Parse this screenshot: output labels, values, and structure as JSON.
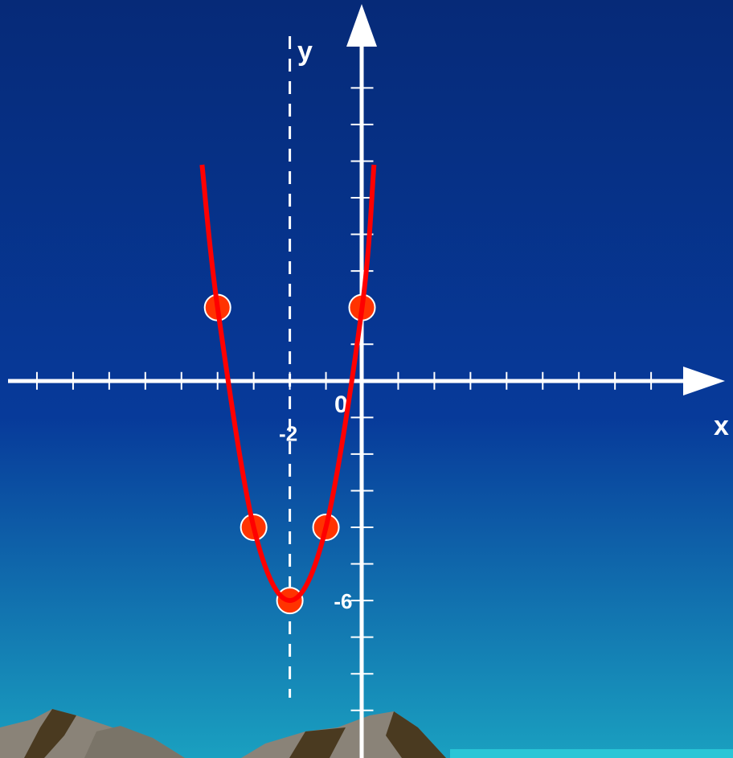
{
  "chart_data": {
    "type": "parabola",
    "x_axis_label": "x",
    "y_axis_label": "y",
    "origin_label": "0",
    "xlim": [
      -9.8,
      10
    ],
    "ylim": [
      -10.3,
      10.4
    ],
    "xticks": [
      -9,
      -8,
      -7,
      -6,
      -5,
      -4,
      -3,
      -2,
      -1,
      1,
      2,
      3,
      4,
      5,
      6,
      7,
      8
    ],
    "yticks": [
      -9,
      -8,
      -7,
      -6,
      -5,
      -4,
      -3,
      -2,
      -1,
      1,
      2,
      3,
      4,
      5,
      6,
      7,
      8
    ],
    "labeled_xticks": [
      -2
    ],
    "labeled_yticks": [
      -6
    ],
    "symmetry_x": -2,
    "points": {
      "color": "#ff3300",
      "x": [
        -4,
        -3,
        -2,
        -1,
        0
      ],
      "values": [
        2,
        -4,
        -6,
        -4,
        2
      ]
    },
    "curve": {
      "color": "#ff0000",
      "x": [
        -4.43,
        -4,
        -3,
        -2,
        -1,
        0,
        0.33
      ],
      "values": [
        5.9,
        2,
        -4,
        -6,
        -4,
        2,
        5.9
      ]
    }
  }
}
